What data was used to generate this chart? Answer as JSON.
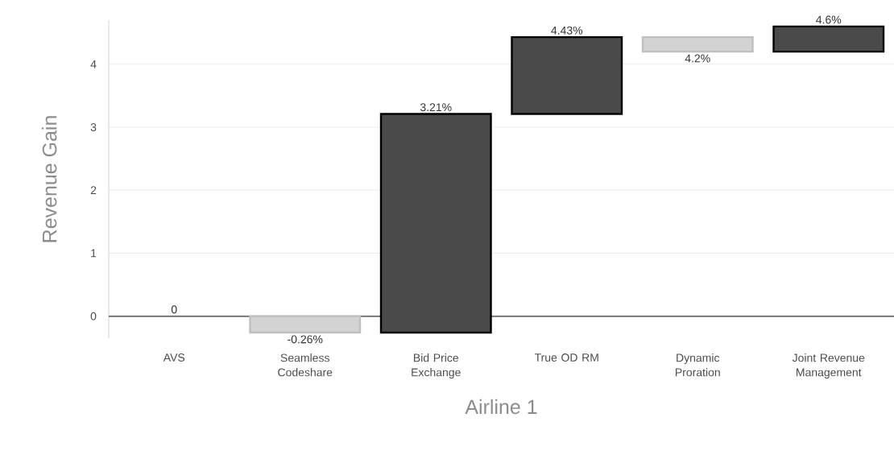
{
  "chart_data": {
    "type": "bar",
    "xlabel": "Airline 1",
    "ylabel": "Revenue Gain",
    "categories": [
      "AVS",
      "Seamless Codeshare",
      "Bid Price Exchange",
      "True OD RM",
      "Dynamic Proration",
      "Joint Revenue Management"
    ],
    "values": [
      0,
      -0.26,
      3.47,
      1.22,
      -0.23,
      0.4
    ],
    "base": [
      null,
      0,
      -0.26,
      3.21,
      4.43,
      4.2
    ],
    "colors": [
      "#d3d3d3",
      "#d3d3d3",
      "#4a4a4a",
      "#4a4a4a",
      "#d3d3d3",
      "#4a4a4a"
    ],
    "value_labels": [
      "0",
      "-0.26%",
      "3.21%",
      "4.43%",
      "4.2%",
      "4.6%"
    ],
    "ylim": [
      -0.35,
      4.7
    ],
    "yticks": [
      0,
      1,
      2,
      3,
      4
    ],
    "grid": "y",
    "ref_lines": [
      {
        "axis": "y",
        "value": 0,
        "color": "#6e6e6e"
      }
    ]
  }
}
